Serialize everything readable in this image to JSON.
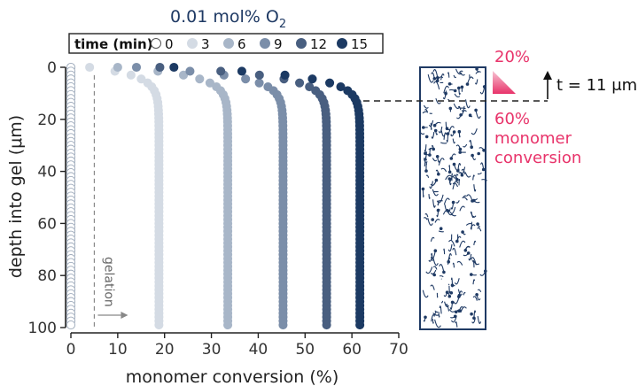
{
  "chart_data": {
    "type": "scatter",
    "title": "0.01 mol% O",
    "title_subscript": "2",
    "xlabel": "monomer conversion (%)",
    "ylabel": "depth into gel (μm)",
    "xlim": [
      0,
      70
    ],
    "ylim": [
      0,
      100
    ],
    "y_inverted": true,
    "x_ticks": [
      "0",
      "10",
      "20",
      "30",
      "40",
      "50",
      "60",
      "70"
    ],
    "y_ticks": [
      "0",
      "20",
      "40",
      "60",
      "80",
      "100"
    ],
    "legend_title": "time (min)",
    "legend_placement": "top",
    "series": [
      {
        "name": "0",
        "color": "#ffffff",
        "plateau": 0.0,
        "surface": 0.0
      },
      {
        "name": "3",
        "color": "#d4dbe4",
        "plateau": 18.8,
        "surface": 4.0
      },
      {
        "name": "6",
        "color": "#a8b6c8",
        "plateau": 33.5,
        "surface": 10.0
      },
      {
        "name": "9",
        "color": "#7b8ea9",
        "plateau": 45.3,
        "surface": 14.0
      },
      {
        "name": "12",
        "color": "#495f80",
        "plateau": 54.6,
        "surface": 19.0
      },
      {
        "name": "15",
        "color": "#1c3a63",
        "plateau": 61.7,
        "surface": 22.0
      }
    ],
    "gelation": {
      "x": 5,
      "label": "gelation"
    },
    "annotations": {
      "top_pct": "20%",
      "bottom_pct": "60%",
      "conversion_line1": "monomer",
      "conversion_line2": "conversion",
      "thickness_label": "t = 11 μm",
      "thickness_depth": 11
    }
  },
  "colors": {
    "title": "#1f3a64",
    "pink": "#e8336a",
    "gel_stroke": "#1f3a64"
  }
}
